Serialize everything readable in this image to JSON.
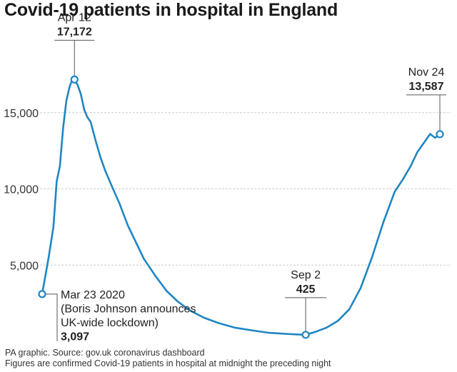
{
  "title": "Covid-19 patients in hospital in England",
  "source": "PA graphic. Source: gov.uk coronavirus dashboard",
  "note": "Figures are confirmed Covid-19 patients in hospital at midnight the preceding night",
  "colors": {
    "line": "#1f86c2",
    "grid": "#d6d6d6",
    "text": "#222222"
  },
  "chart_data": {
    "type": "line",
    "title": "Covid-19 patients in hospital in England",
    "xlabel": "",
    "ylabel": "",
    "ylim": [
      0,
      18500
    ],
    "yticks": [
      5000,
      10000,
      15000
    ],
    "ytick_labels": [
      "5,000",
      "10,000",
      "15,000"
    ],
    "grid": true,
    "series": [
      {
        "x": [
          "2020-03-23",
          "2020-03-27",
          "2020-03-30",
          "2020-04-01",
          "2020-04-03",
          "2020-04-05",
          "2020-04-07",
          "2020-04-09",
          "2020-04-10",
          "2020-04-12",
          "2020-04-14",
          "2020-04-16",
          "2020-04-18",
          "2020-04-20",
          "2020-04-22",
          "2020-04-25",
          "2020-04-28",
          "2020-05-01",
          "2020-05-05",
          "2020-05-10",
          "2020-05-15",
          "2020-05-20",
          "2020-05-25",
          "2020-06-01",
          "2020-06-08",
          "2020-06-15",
          "2020-06-22",
          "2020-07-01",
          "2020-07-10",
          "2020-07-20",
          "2020-08-01",
          "2020-08-10",
          "2020-08-20",
          "2020-08-28",
          "2020-09-02",
          "2020-09-08",
          "2020-09-15",
          "2020-09-22",
          "2020-09-29",
          "2020-10-06",
          "2020-10-13",
          "2020-10-20",
          "2020-10-27",
          "2020-11-01",
          "2020-11-06",
          "2020-11-10",
          "2020-11-14",
          "2020-11-18",
          "2020-11-21",
          "2020-11-24"
        ],
        "y": [
          3097,
          5500,
          7500,
          10500,
          11500,
          14000,
          15800,
          16700,
          17000,
          17172,
          16800,
          16200,
          15200,
          14700,
          14400,
          13200,
          12100,
          11200,
          10200,
          9000,
          7600,
          6500,
          5400,
          4300,
          3300,
          2600,
          2050,
          1550,
          1200,
          900,
          700,
          560,
          490,
          450,
          425,
          620,
          900,
          1350,
          2100,
          3500,
          5500,
          7800,
          9800,
          10600,
          11500,
          12400,
          13000,
          13600,
          13350,
          13587
        ]
      }
    ],
    "annotations": [
      {
        "date": "2020-03-23",
        "lines": [
          "Mar 23 2020",
          "(Boris Johnson announces",
          "UK-wide lockdown)"
        ],
        "value": 3097,
        "value_label": "3,097"
      },
      {
        "date": "2020-04-12",
        "label": "Apr 12",
        "value": 17172,
        "value_label": "17,172"
      },
      {
        "date": "2020-09-02",
        "label": "Sep 2",
        "value": 425,
        "value_label": "425"
      },
      {
        "date": "2020-11-24",
        "label": "Nov 24",
        "value": 13587,
        "value_label": "13,587"
      }
    ]
  }
}
